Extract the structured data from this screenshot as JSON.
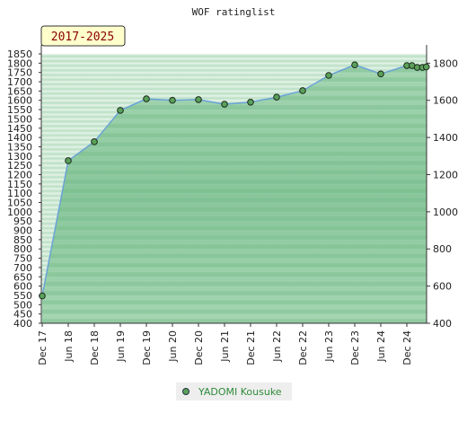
{
  "chart_data": {
    "type": "area",
    "title": "WOF ratinglist",
    "period_label": "2017-2025",
    "x_tick_labels": [
      "Dec 17",
      "Jun 18",
      "Dec 18",
      "Jun 19",
      "Dec 19",
      "Jun 20",
      "Dec 20",
      "Jun 21",
      "Dec 21",
      "Jun 22",
      "Dec 22",
      "Jun 23",
      "Dec 23",
      "Jun 24",
      "Dec 24"
    ],
    "y_left_ticks": [
      1850,
      1800,
      1750,
      1700,
      1650,
      1600,
      1550,
      1500,
      1450,
      1400,
      1350,
      1300,
      1250,
      1200,
      1150,
      1100,
      1050,
      1000,
      950,
      900,
      850,
      800,
      750,
      700,
      650,
      600,
      550,
      500,
      450,
      400
    ],
    "y_right_ticks": [
      1800,
      1600,
      1400,
      1200,
      1000,
      800,
      600,
      400
    ],
    "ylim": [
      400,
      1850
    ],
    "series": [
      {
        "name": "YADOMI Kousuke",
        "color": "#2e8b3a",
        "points": [
          {
            "x": 0.0,
            "y": 547
          },
          {
            "x": 1.0,
            "y": 1275
          },
          {
            "x": 2.0,
            "y": 1377
          },
          {
            "x": 3.0,
            "y": 1546
          },
          {
            "x": 4.0,
            "y": 1608
          },
          {
            "x": 5.0,
            "y": 1600
          },
          {
            "x": 6.0,
            "y": 1604
          },
          {
            "x": 7.0,
            "y": 1579
          },
          {
            "x": 8.0,
            "y": 1590
          },
          {
            "x": 9.0,
            "y": 1617
          },
          {
            "x": 10.0,
            "y": 1652
          },
          {
            "x": 11.0,
            "y": 1734
          },
          {
            "x": 12.0,
            "y": 1791
          },
          {
            "x": 13.0,
            "y": 1742
          },
          {
            "x": 14.0,
            "y": 1787
          },
          {
            "x": 14.2,
            "y": 1787
          },
          {
            "x": 14.4,
            "y": 1777
          },
          {
            "x": 14.6,
            "y": 1777
          },
          {
            "x": 14.75,
            "y": 1780
          }
        ]
      }
    ],
    "legend": {
      "position": "bottom"
    },
    "grid": false
  }
}
